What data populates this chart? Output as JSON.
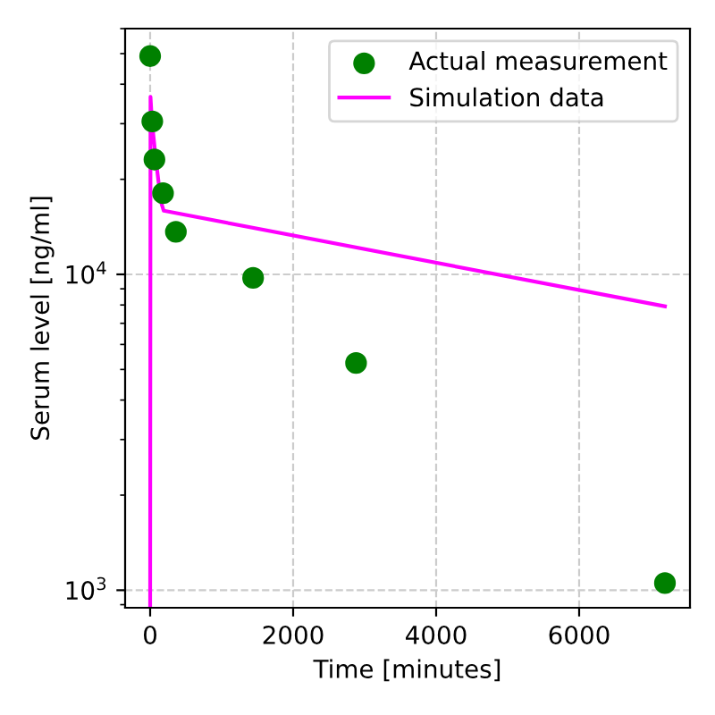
{
  "chart_data": {
    "type": "scatter",
    "xlabel": "Time [minutes]",
    "ylabel": "Serum level [ng/ml]",
    "log": "y",
    "xlim": [
      -350,
      7550
    ],
    "xticks": [
      0,
      2000,
      4000,
      6000
    ],
    "ylim": [
      880,
      60000
    ],
    "yticks": [
      {
        "value": 1000,
        "label": "10$^{3}$"
      },
      {
        "value": 10000,
        "label": "10$^{4}$"
      }
    ],
    "grid": true,
    "legend": "top right",
    "series": [
      {
        "name": "Actual measurement",
        "color": "#008000",
        "marker": "circle",
        "x": [
          0,
          30,
          60,
          180,
          360,
          1440,
          2880,
          7200
        ],
        "values": [
          49100,
          30500,
          23100,
          18070,
          13640,
          9750,
          5240,
          1053
        ]
      },
      {
        "name": "Simulation data",
        "type": "line",
        "color": "#ff00ff",
        "line_style": "solid",
        "x": [
          0,
          5,
          25,
          80,
          150,
          190,
          7200
        ],
        "values": [
          880,
          36500,
          30500,
          23100,
          17000,
          15900,
          7920
        ]
      }
    ]
  }
}
